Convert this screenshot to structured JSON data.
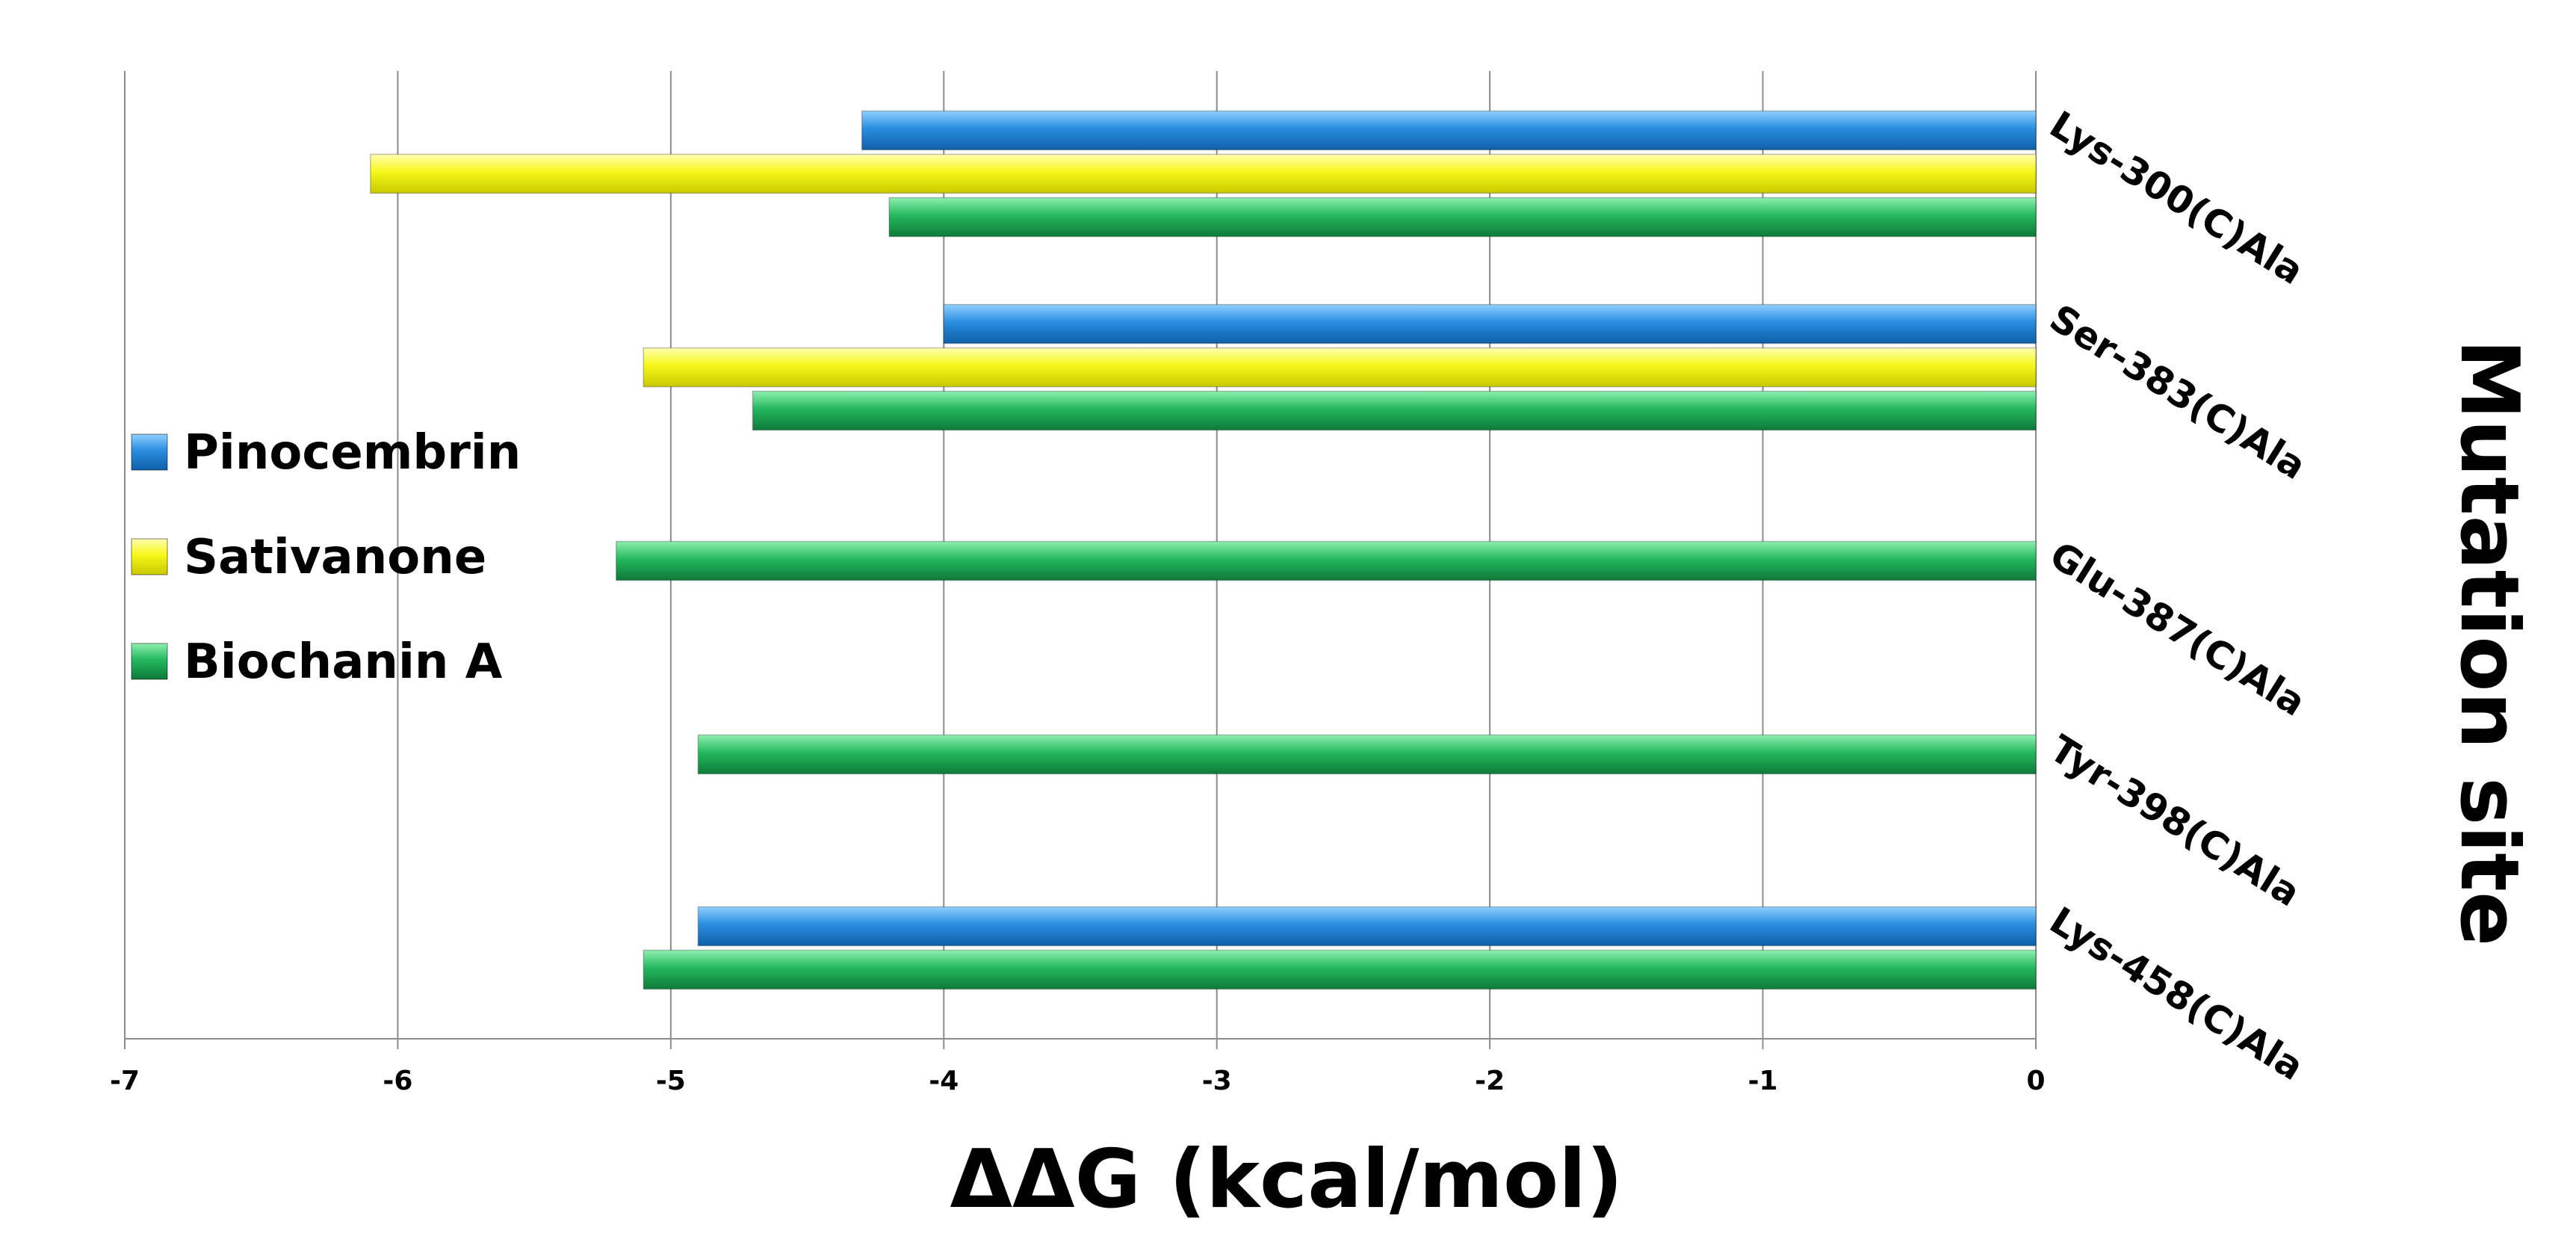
{
  "chart_data": {
    "type": "bar",
    "orientation": "horizontal",
    "categories": [
      "Lys-300(C)Ala",
      "Ser-383(C)Ala",
      "Glu-387(C)Ala",
      "Tyr-398(C)Ala",
      "Lys-458(C)Ala"
    ],
    "series": [
      {
        "name": "Pinocembrin",
        "color": "#1f7fd0",
        "values": [
          -4.3,
          -4.0,
          null,
          null,
          -4.9
        ]
      },
      {
        "name": "Sativanone",
        "color": "#f2f20a",
        "values": [
          -6.1,
          -5.1,
          null,
          null,
          null
        ]
      },
      {
        "name": "Biochanin A",
        "color": "#1fb45a",
        "values": [
          -4.2,
          -4.7,
          -5.2,
          -4.9,
          -5.1
        ]
      }
    ],
    "xlabel": "ΔΔG (kcal/mol)",
    "ylabel": "Mutation site",
    "xlim": [
      -7,
      0
    ],
    "xticks": [
      "-7",
      "-6",
      "-5",
      "-4",
      "-3",
      "-2",
      "-1",
      "0"
    ],
    "grid": true,
    "legend_position": "left"
  }
}
